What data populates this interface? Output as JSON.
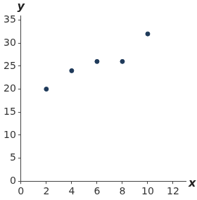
{
  "chart_data": {
    "type": "scatter",
    "x_label": "x",
    "y_label": "y",
    "x": [
      2,
      4,
      6,
      8,
      10
    ],
    "values": [
      20,
      24,
      26,
      26,
      32
    ],
    "color": "#1f3a5a",
    "xlim": [
      0,
      13
    ],
    "xticks": [
      0,
      2,
      4,
      6,
      8,
      10,
      12
    ],
    "ylim": [
      0,
      36
    ],
    "yticks": [
      0,
      5,
      10,
      15,
      20,
      25,
      30,
      35
    ],
    "grid": false
  }
}
